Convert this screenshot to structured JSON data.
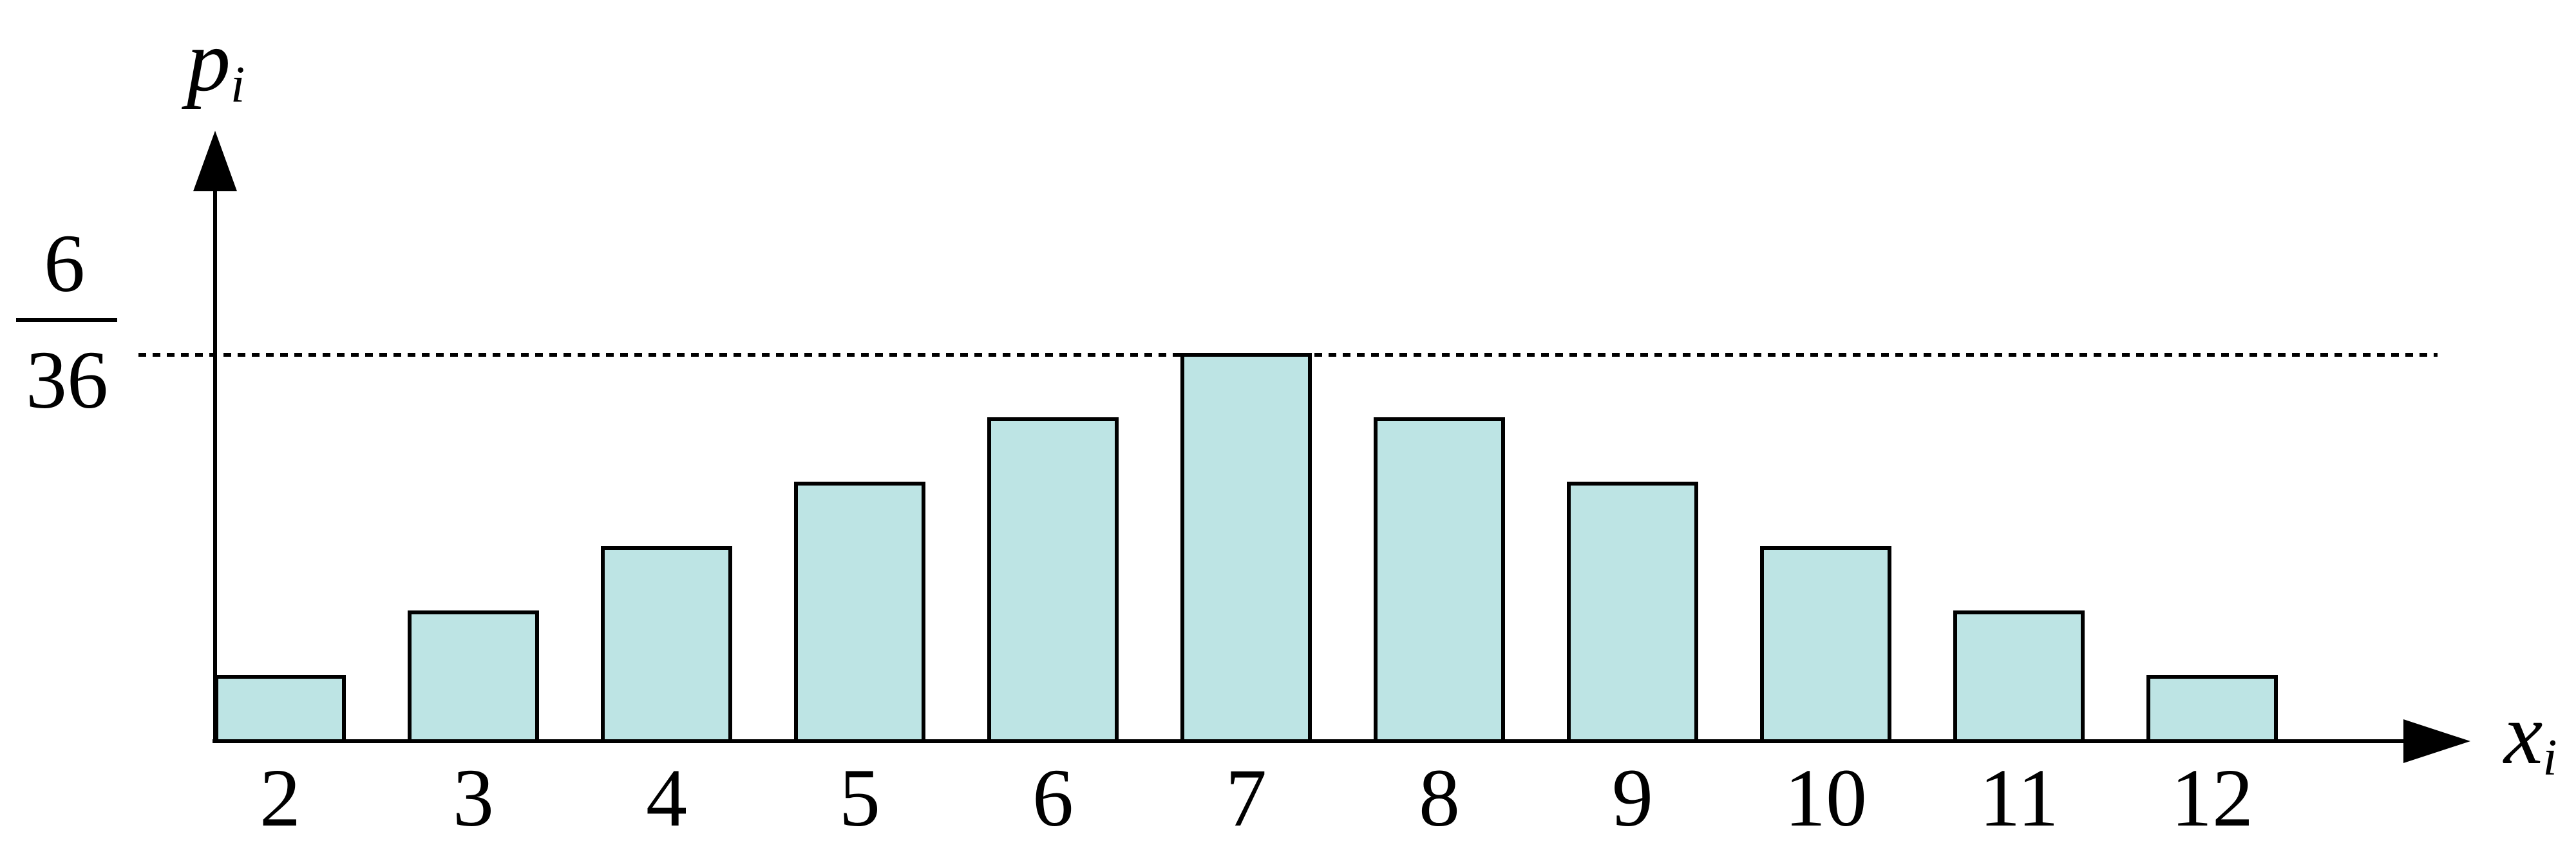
{
  "chart_data": {
    "type": "bar",
    "categories": [
      "2",
      "3",
      "4",
      "5",
      "6",
      "7",
      "8",
      "9",
      "10",
      "11",
      "12"
    ],
    "values": [
      1,
      2,
      3,
      4,
      5,
      6,
      5,
      4,
      3,
      2,
      1
    ],
    "value_denominator": 36,
    "ylim": [
      0,
      6
    ],
    "xlabel_var": "x",
    "xlabel_sub": "i",
    "ylabel_var": "p",
    "ylabel_sub": "i",
    "reference_line": {
      "value": 6,
      "label_numerator": "6",
      "label_denominator": "36",
      "style": "dotted"
    },
    "colors": {
      "bar_fill": "#bde4e4",
      "bar_stroke": "#000000",
      "axis": "#000000"
    },
    "grid": false,
    "legend": "none"
  }
}
